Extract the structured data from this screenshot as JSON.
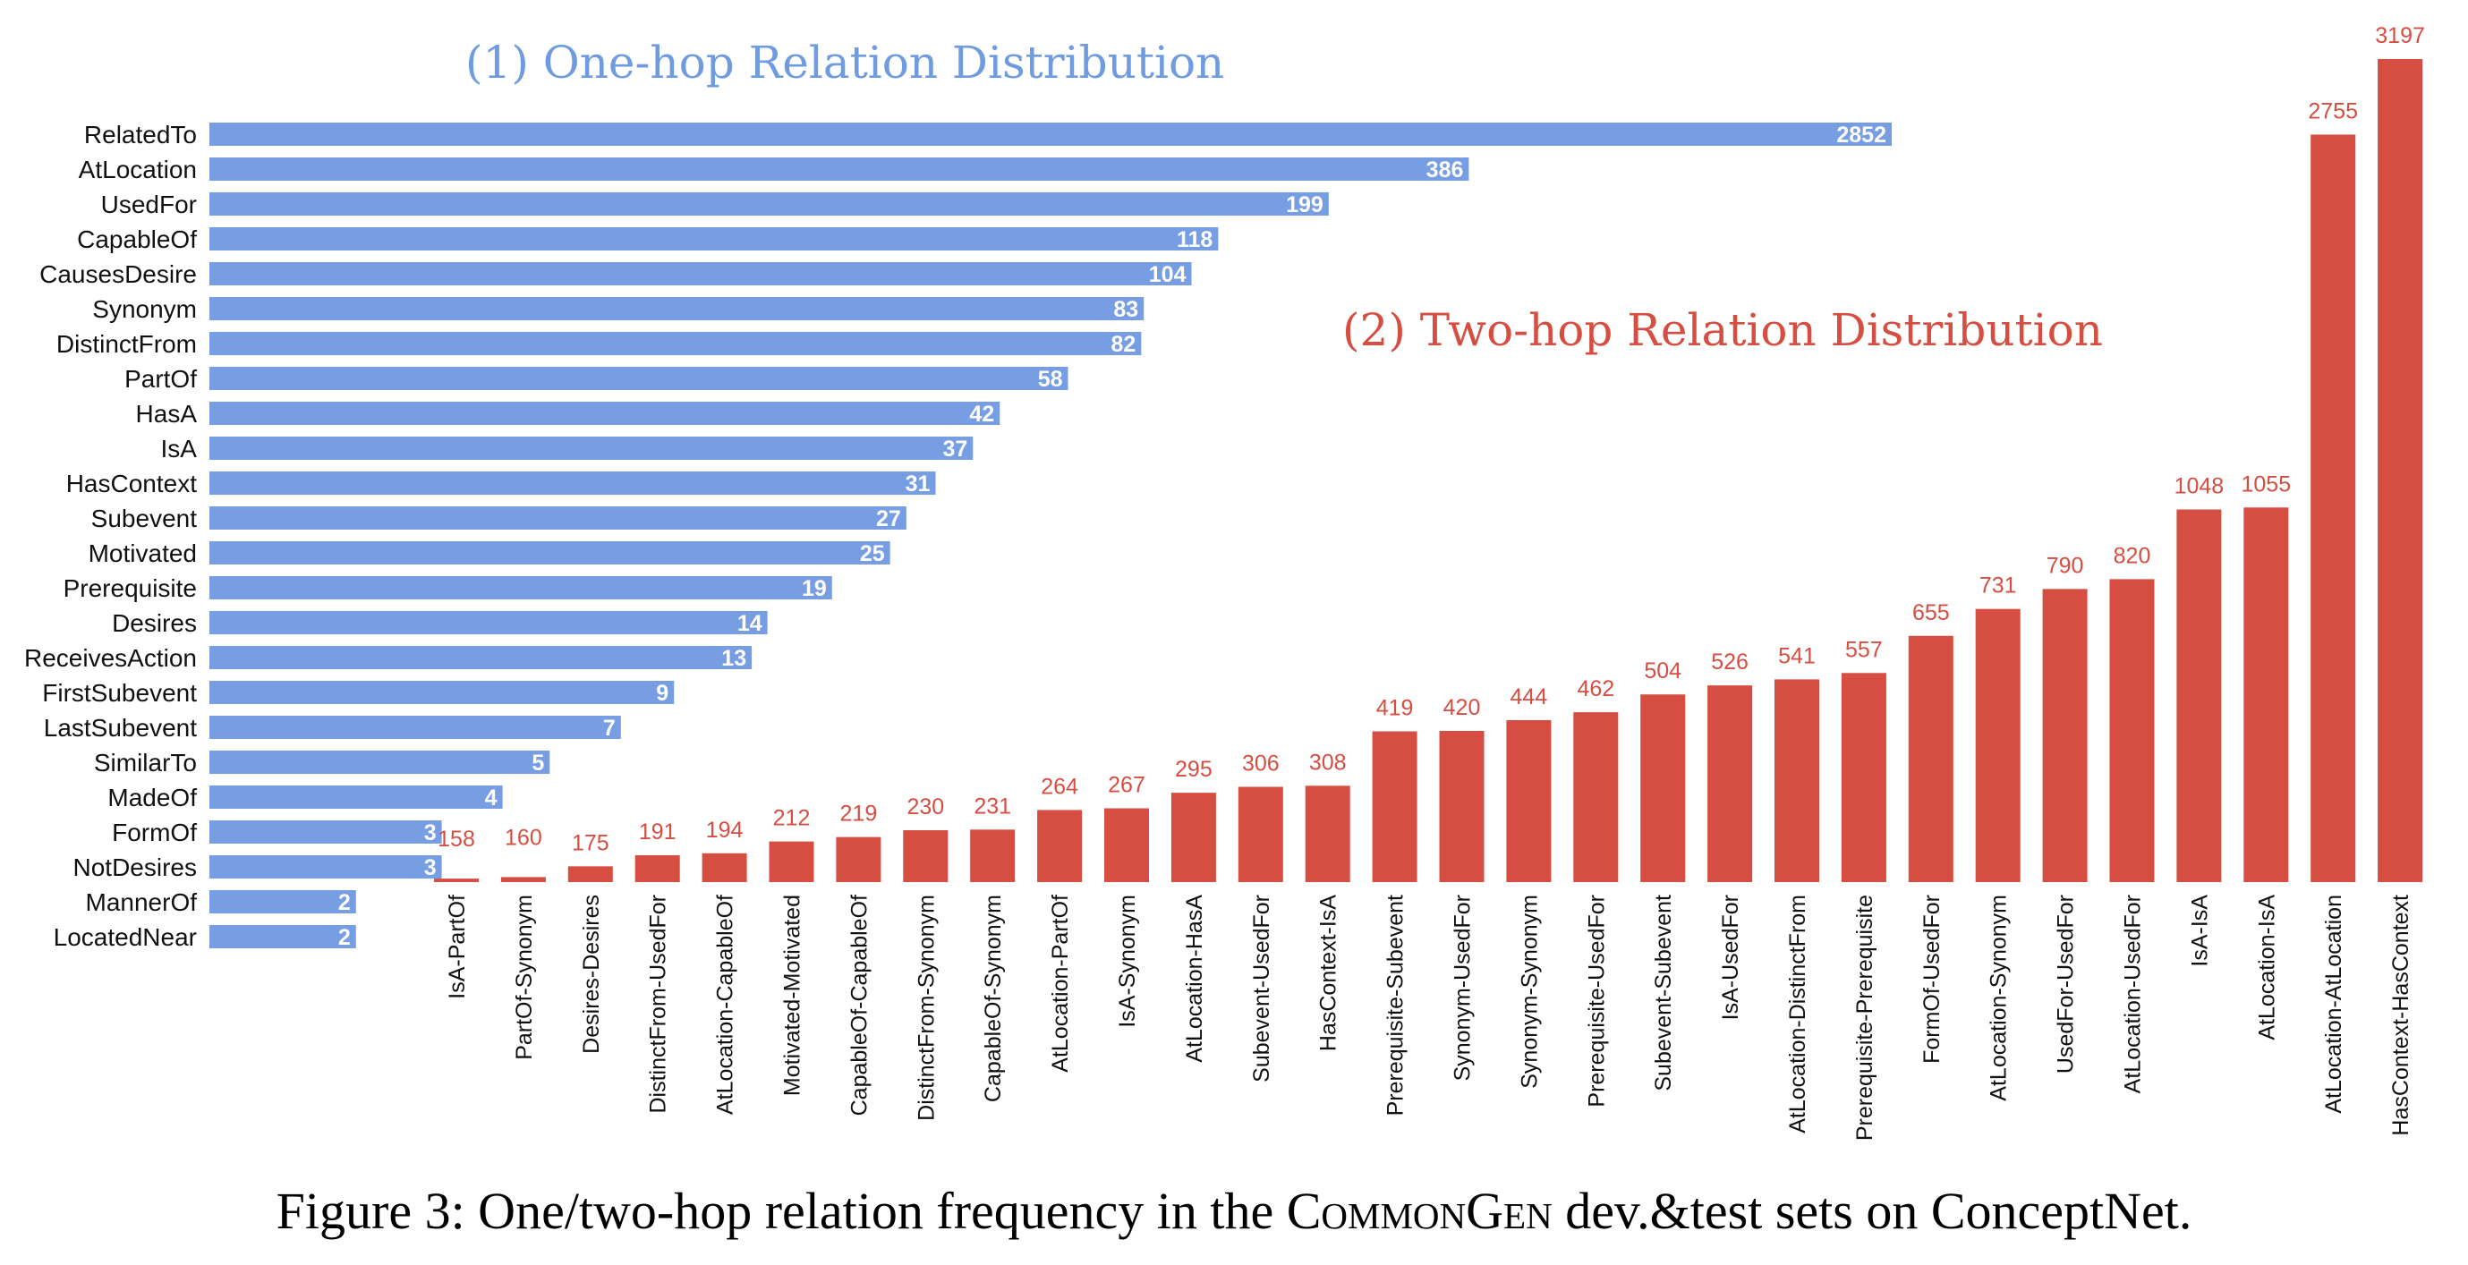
{
  "colors": {
    "one_hop": "#779ee3",
    "two_hop": "#d64e41",
    "text": "#111111"
  },
  "caption": {
    "prefix": "Figure 3: One/two-hop relation frequency in the ",
    "name": "CommonGen",
    "suffix": " dev.&test sets on ConceptNet."
  },
  "chart_data": [
    {
      "type": "bar",
      "orientation": "horizontal",
      "title": "(1) One-hop Relation Distribution",
      "categories": [
        "RelatedTo",
        "AtLocation",
        "UsedFor",
        "CapableOf",
        "CausesDesire",
        "Synonym",
        "DistinctFrom",
        "PartOf",
        "HasA",
        "IsA",
        "HasContext",
        "Subevent",
        "Motivated",
        "Prerequisite",
        "Desires",
        "ReceivesAction",
        "FirstSubevent",
        "LastSubevent",
        "SimilarTo",
        "MadeOf",
        "FormOf",
        "NotDesires",
        "MannerOf",
        "LocatedNear"
      ],
      "values": [
        2852,
        386,
        199,
        118,
        104,
        83,
        82,
        58,
        42,
        37,
        31,
        27,
        25,
        19,
        14,
        13,
        9,
        7,
        5,
        4,
        3,
        3,
        2,
        2
      ],
      "scale": "log"
    },
    {
      "type": "bar",
      "orientation": "vertical",
      "title": "(2) Two-hop Relation Distribution",
      "categories": [
        "IsA-PartOf",
        "PartOf-Synonym",
        "Desires-Desires",
        "DistinctFrom-UsedFor",
        "AtLocation-CapableOf",
        "Motivated-Motivated",
        "CapableOf-CapableOf",
        "DistinctFrom-Synonym",
        "CapableOf-Synonym",
        "AtLocation-PartOf",
        "IsA-Synonym",
        "AtLocation-HasA",
        "Subevent-UsedFor",
        "HasContext-IsA",
        "Prerequisite-Subevent",
        "Synonym-UsedFor",
        "Synonym-Synonym",
        "Prerequisite-UsedFor",
        "Subevent-Subevent",
        "IsA-UsedFor",
        "AtLocation-DistinctFrom",
        "Prerequisite-Prerequisite",
        "FormOf-UsedFor",
        "AtLocation-Synonym",
        "UsedFor-UsedFor",
        "AtLocation-UsedFor",
        "IsA-IsA",
        "AtLocation-IsA",
        "AtLocation-AtLocation",
        "HasContext-HasContext"
      ],
      "values": [
        158,
        160,
        175,
        191,
        194,
        212,
        219,
        230,
        231,
        264,
        267,
        295,
        306,
        308,
        419,
        420,
        444,
        462,
        504,
        526,
        541,
        557,
        655,
        731,
        790,
        820,
        1048,
        1055,
        2755,
        3197
      ]
    }
  ]
}
